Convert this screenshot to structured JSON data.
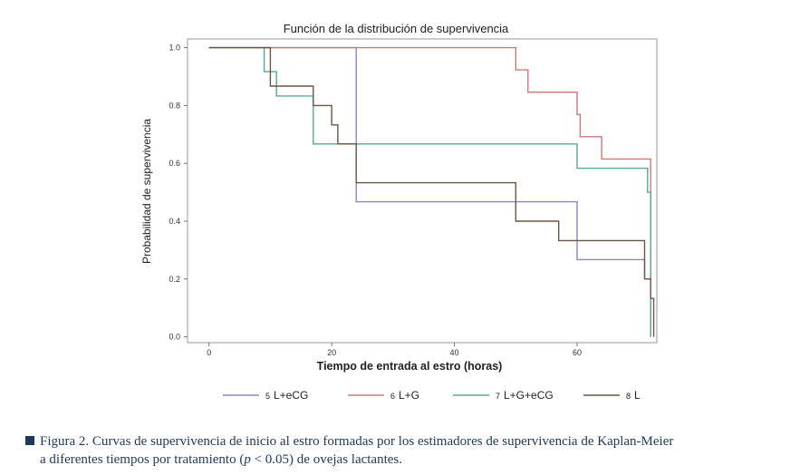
{
  "chart_data": {
    "type": "line",
    "title": "Función de la distribución de supervivencia",
    "xlabel": "Tiempo de entrada al estro (horas)",
    "ylabel": "Probabilidad de supervivencia",
    "xlim": [
      -3.5,
      73
    ],
    "ylim": [
      -0.02,
      1.03
    ],
    "xticks": [
      "0",
      "20",
      "40",
      "60"
    ],
    "yticks": [
      "0.0",
      "0.2",
      "0.4",
      "0.6",
      "0.8",
      "1.0"
    ],
    "xtick_values": [
      0,
      20,
      40,
      60
    ],
    "ytick_values": [
      0.0,
      0.2,
      0.4,
      0.6,
      0.8,
      1.0
    ],
    "grid": false,
    "legend_position": "bottom",
    "series": [
      {
        "name": "L+eCG",
        "legend_number": "5",
        "color": "#8b87c0",
        "steps": [
          [
            0,
            1.0
          ],
          [
            24,
            0.467
          ],
          [
            60,
            0.267
          ],
          [
            71,
            0.2
          ],
          [
            72,
            0.0
          ]
        ]
      },
      {
        "name": "L+G",
        "legend_number": "6",
        "color": "#cc7b74",
        "steps": [
          [
            0,
            1.0
          ],
          [
            50,
            0.923
          ],
          [
            52,
            0.846
          ],
          [
            60,
            0.769
          ],
          [
            60.5,
            0.692
          ],
          [
            64,
            0.615
          ],
          [
            72,
            0.0
          ]
        ]
      },
      {
        "name": "L+G+eCG",
        "legend_number": "7",
        "color": "#5aa896",
        "steps": [
          [
            0,
            1.0
          ],
          [
            9,
            0.917
          ],
          [
            11,
            0.833
          ],
          [
            17,
            0.667
          ],
          [
            60,
            0.583
          ],
          [
            71.5,
            0.5
          ],
          [
            72,
            0.0
          ]
        ]
      },
      {
        "name": "L",
        "legend_number": "8",
        "color": "#6e5644",
        "steps": [
          [
            0,
            1.0
          ],
          [
            10,
            0.867
          ],
          [
            17,
            0.8
          ],
          [
            20,
            0.733
          ],
          [
            21,
            0.667
          ],
          [
            24,
            0.533
          ],
          [
            50,
            0.4
          ],
          [
            57,
            0.333
          ],
          [
            71,
            0.2
          ],
          [
            72,
            0.133
          ],
          [
            72.5,
            0.0
          ]
        ]
      }
    ]
  },
  "caption": {
    "line1": "Figura 2. Curvas de supervivencia de inicio al estro formadas por los estimadores de supervivencia de Kaplan-Meier",
    "line2": "a diferentes tiempos por tratamiento (p < 0.05) de ovejas lactantes."
  }
}
